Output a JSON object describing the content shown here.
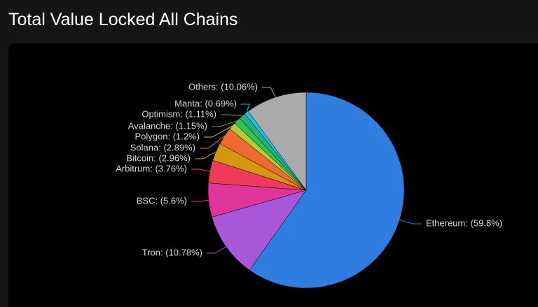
{
  "chart_data": {
    "type": "pie",
    "title": "Total Value Locked All Chains",
    "values": [
      59.8,
      10.78,
      5.6,
      3.76,
      2.96,
      2.89,
      1.2,
      1.15,
      1.11,
      0.69,
      10.06
    ],
    "value_labels": [
      "Ethereum: (59.8%)",
      "Tron: (10.78%)",
      "BSC: (5.6%)",
      "Arbitrum: (3.76%)",
      "Bitcoin: (2.96%)",
      "Solana: (2.89%)",
      "Polygon: (1.2%)",
      "Avalanche: (1.15%)",
      "Optimism: (1.11%)",
      "Manta: (0.69%)",
      "Others: (10.06%)"
    ],
    "colors": [
      "#2f7de1",
      "#a658d8",
      "#e0359a",
      "#ef3b5b",
      "#d4960f",
      "#f0692f",
      "#b9c934",
      "#35c24a",
      "#22b27a",
      "#19c4e0",
      "#aaaaaa"
    ]
  }
}
